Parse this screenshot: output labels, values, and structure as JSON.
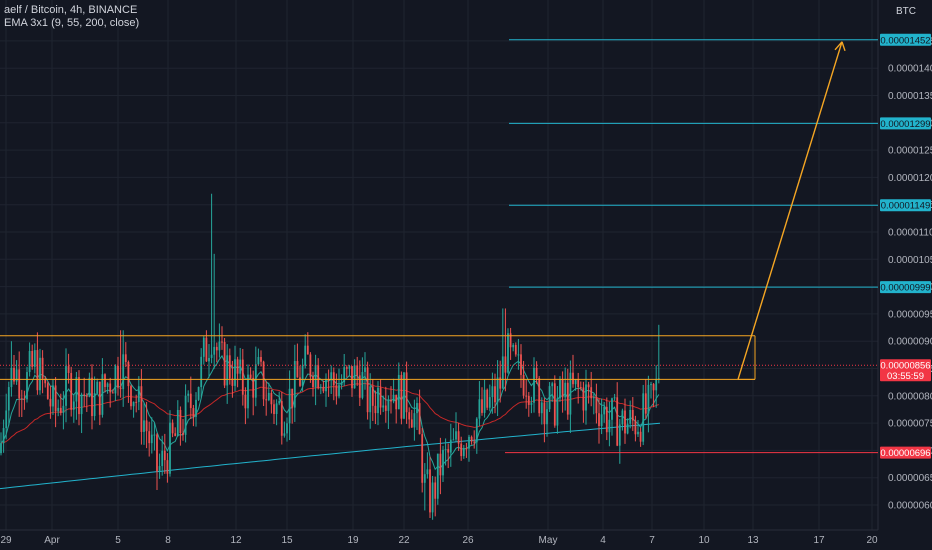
{
  "legend": {
    "symbol": "aelf / Bitcoin, 4h, BINANCE",
    "indicator": "EMA 3x1 (9, 55, 200, close)"
  },
  "currency": "BTC",
  "colors": {
    "background": "#131722",
    "grid": "#1f2430",
    "up": "#26a69a",
    "down": "#ef5350",
    "ema_fast": "#26a69a",
    "ema_mid": "#c62828",
    "ema_slow": "#22b3cc",
    "level": "#22b3cc",
    "support": "#f23645",
    "orange": "#f5a623",
    "current": "#f23645"
  },
  "chart_data": {
    "type": "candlestick",
    "y_axis": {
      "range": [
        5.8e-06,
        1.53e-05
      ],
      "ticks": [
        "0.00000600",
        "0.00000650",
        "0.00000700",
        "0.00000750",
        "0.00000800",
        "0.00000850",
        "0.00000900",
        "0.00000950",
        "0.00001000",
        "0.00001050",
        "0.00001100",
        "0.00001150",
        "0.00001200",
        "0.00001250",
        "0.00001300",
        "0.00001350",
        "0.00001400",
        "0.00001450"
      ]
    },
    "x_axis": {
      "ticks": [
        "29",
        "Apr",
        "5",
        "8",
        "12",
        "15",
        "19",
        "22",
        "26",
        "May",
        "4",
        "7",
        "10",
        "13",
        "17",
        "20"
      ]
    },
    "levels": [
      {
        "label": "0.00001452",
        "value": 1.452e-05
      },
      {
        "label": "0.00001299",
        "value": 1.299e-05
      },
      {
        "label": "0.00001149",
        "value": 1.149e-05
      },
      {
        "label": "0.00000999",
        "value": 9.99e-06
      }
    ],
    "support": {
      "label": "0.00000696",
      "value": 6.96e-06
    },
    "current_price": {
      "label": "0.00000856",
      "value": 8.56e-06,
      "countdown": "03:55:59"
    },
    "range_box": {
      "top": 9.1e-06,
      "bottom": 8.3e-06
    },
    "projection": {
      "from": 8.3e-06,
      "to": 1.452e-05
    },
    "series": [
      {
        "name": "aelf / Bitcoin",
        "ohlc_note": "4h candles, approximately 0.0000060 – 0.0000117 range"
      },
      {
        "name": "EMA 9"
      },
      {
        "name": "EMA 55"
      },
      {
        "name": "EMA 200"
      }
    ]
  }
}
